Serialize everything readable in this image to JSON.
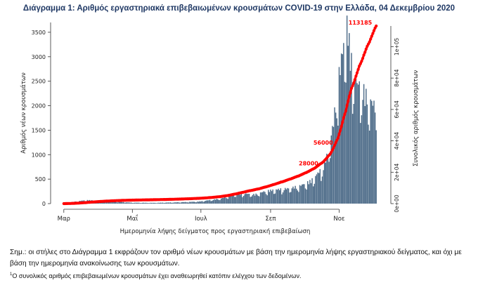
{
  "chart_data": {
    "type": "bar",
    "title": "Διάγραμμα 1: Αριθμός εργαστηριακά επιβεβαιωμένων κρουσμάτων COVID-19 στην Ελλάδα, 04 Δεκεμβρίου 2020",
    "xlabel": "Ημερομηνία λήψης δείγματος προς εργαστηριακή επιβεβαίωση",
    "ylabel": "Αριθμός νέων κρουσμάτων",
    "y2label": "Συνολικός αριθμός κρουσμάτων",
    "x_ticks": [
      {
        "label": "Μαρ",
        "day": 0
      },
      {
        "label": "Μαΐ",
        "day": 61
      },
      {
        "label": "Ιουλ",
        "day": 122
      },
      {
        "label": "Σεπ",
        "day": 184
      },
      {
        "label": "Νοε",
        "day": 245
      }
    ],
    "ylim": [
      0,
      3700
    ],
    "y_ticks": [
      0,
      500,
      1000,
      1500,
      2000,
      2500,
      3000,
      3500
    ],
    "y2lim": [
      0,
      113185
    ],
    "y2_ticks": [
      "0e+00",
      "2e+04",
      "4e+04",
      "6e+04",
      "8e+04",
      "1e+05"
    ],
    "y2_tick_values": [
      0,
      20000,
      40000,
      60000,
      80000,
      100000
    ],
    "cumulative_labels": [
      {
        "text": "28000",
        "day": 229
      },
      {
        "text": "56000",
        "day": 242
      },
      {
        "text": "113185",
        "day": 278
      }
    ],
    "daily_anchors": [
      [
        0,
        10
      ],
      [
        10,
        40
      ],
      [
        20,
        70
      ],
      [
        30,
        60
      ],
      [
        45,
        40
      ],
      [
        60,
        20
      ],
      [
        80,
        15
      ],
      [
        100,
        25
      ],
      [
        120,
        40
      ],
      [
        140,
        100
      ],
      [
        150,
        180
      ],
      [
        160,
        200
      ],
      [
        170,
        180
      ],
      [
        180,
        250
      ],
      [
        190,
        280
      ],
      [
        200,
        300
      ],
      [
        210,
        350
      ],
      [
        220,
        450
      ],
      [
        230,
        700
      ],
      [
        235,
        1000
      ],
      [
        240,
        1600
      ],
      [
        244,
        2400
      ],
      [
        248,
        3000
      ],
      [
        252,
        3550
      ],
      [
        256,
        2800
      ],
      [
        260,
        2400
      ],
      [
        265,
        2300
      ],
      [
        270,
        2100
      ],
      [
        274,
        2000
      ],
      [
        278,
        1900
      ]
    ],
    "series": [
      {
        "name": "Νέα κρούσματα",
        "kind": "bar",
        "color": "#4f6d8a"
      },
      {
        "name": "Συνολικός αριθμός",
        "kind": "line",
        "color": "#ff0000"
      }
    ]
  },
  "note": "Σημ.: οι στήλες στο Διάγραμμα 1 εκφράζουν τον αριθμό νέων κρουσμάτων με βάση την ημερομηνία λήψης εργαστηριακού δείγματος, και όχι με βάση την ημερομηνία ανακοίνωσης των κρουσμάτων.",
  "footnote_marker": "1",
  "footnote": "Ο συνολικός αριθμός επιβεβαιωμένων κρουσμάτων έχει αναθεωρηθεί κατόπιν ελέγχου των δεδομένων."
}
